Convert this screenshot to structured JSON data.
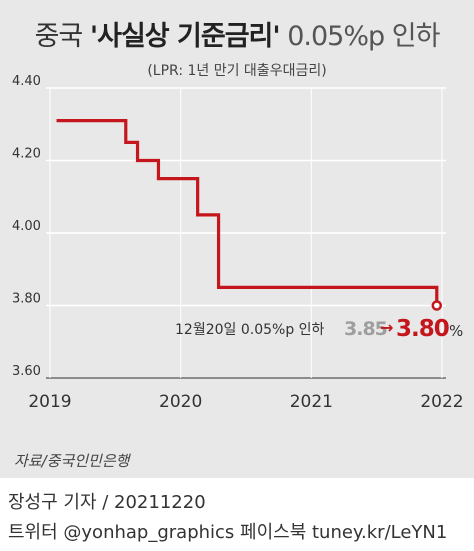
{
  "header": {
    "title_prefix": "중국 ",
    "title_main": "'사실상 기준금리'",
    "title_suffix": " 0.05%p 인하",
    "subtitle": "(LPR: 1년 만기 대출우대금리)"
  },
  "source": "자료/중국인민은행",
  "footer": {
    "byline": "장성구 기자  /  20211220",
    "social": "트위터 @yonhap_graphics  페이스북 tuney.kr/LeYN1"
  },
  "annotation": {
    "label": "12월20일 0.05%p 인하",
    "from": "3.85",
    "arrow": "→",
    "to": "3.80",
    "unit": "%"
  },
  "colors": {
    "line": "#c4161c",
    "grid": "#ffffff",
    "axis": "#555555",
    "from_value": "#9e9e9e"
  },
  "chart_data": {
    "type": "line",
    "step": true,
    "title": "중국 '사실상 기준금리' 0.05%p 인하",
    "subtitle": "(LPR: 1년 만기 대출우대금리)",
    "x_ticks": [
      "2019",
      "2020",
      "2021",
      "2022"
    ],
    "y_ticks": [
      "3.60",
      "3.80",
      "4.00",
      "4.20",
      "4.40"
    ],
    "ylim": [
      3.6,
      4.4
    ],
    "xlim": [
      2019.0,
      2022.0
    ],
    "series": [
      {
        "x": [
          2019.05,
          2019.58,
          2019.67,
          2019.83,
          2020.13,
          2020.29,
          2021.96,
          2021.96
        ],
        "y": [
          4.31,
          4.25,
          4.2,
          4.15,
          4.05,
          3.85,
          3.85,
          3.8
        ]
      }
    ]
  }
}
